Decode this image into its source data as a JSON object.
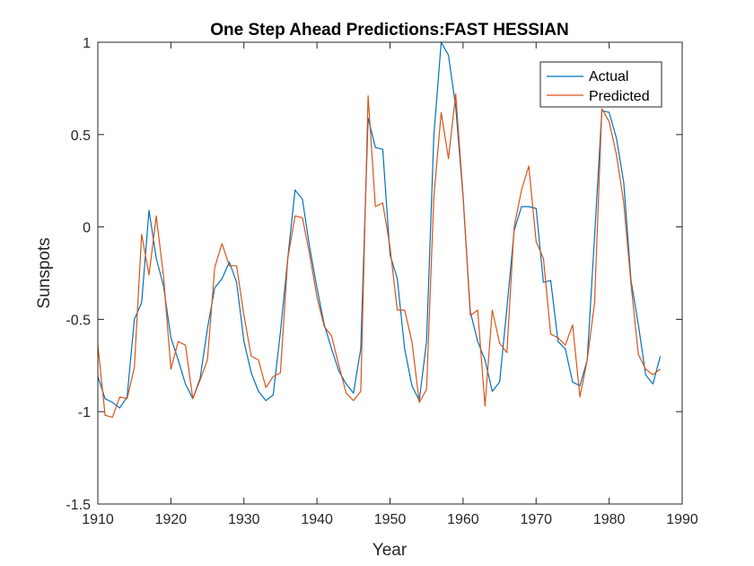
{
  "chart_data": {
    "type": "line",
    "title": "One Step Ahead Predictions:FAST HESSIAN",
    "xlabel": "Year",
    "ylabel": "Sunspots",
    "xlim": [
      1910,
      1990
    ],
    "ylim": [
      -1.5,
      1
    ],
    "xticks": [
      1910,
      1920,
      1930,
      1940,
      1950,
      1960,
      1970,
      1980,
      1990
    ],
    "yticks": [
      -1.5,
      -1,
      -0.5,
      0,
      0.5,
      1
    ],
    "ytick_labels": [
      "-1.5",
      "-1",
      "-0.5",
      "0",
      "0.5",
      "1"
    ],
    "grid": false,
    "legend_position": "top-right",
    "x": [
      1910,
      1911,
      1912,
      1913,
      1914,
      1915,
      1916,
      1917,
      1918,
      1919,
      1920,
      1921,
      1922,
      1923,
      1924,
      1925,
      1926,
      1927,
      1928,
      1929,
      1930,
      1931,
      1932,
      1933,
      1934,
      1935,
      1936,
      1937,
      1938,
      1939,
      1940,
      1941,
      1942,
      1943,
      1944,
      1945,
      1946,
      1947,
      1948,
      1949,
      1950,
      1951,
      1952,
      1953,
      1954,
      1955,
      1956,
      1957,
      1958,
      1959,
      1960,
      1961,
      1962,
      1963,
      1964,
      1965,
      1966,
      1967,
      1968,
      1969,
      1970,
      1971,
      1972,
      1973,
      1974,
      1975,
      1976,
      1977,
      1978,
      1979,
      1980,
      1981,
      1982,
      1983,
      1984,
      1985,
      1986,
      1987
    ],
    "series": [
      {
        "name": "Actual",
        "color": "#0072BD",
        "values": [
          -0.81,
          -0.93,
          -0.95,
          -0.98,
          -0.92,
          -0.5,
          -0.41,
          0.09,
          -0.17,
          -0.32,
          -0.6,
          -0.72,
          -0.85,
          -0.93,
          -0.82,
          -0.55,
          -0.33,
          -0.28,
          -0.19,
          -0.3,
          -0.62,
          -0.79,
          -0.89,
          -0.94,
          -0.91,
          -0.57,
          -0.17,
          0.2,
          0.15,
          -0.11,
          -0.33,
          -0.53,
          -0.66,
          -0.78,
          -0.85,
          -0.9,
          -0.66,
          0.59,
          0.43,
          0.42,
          -0.15,
          -0.28,
          -0.66,
          -0.86,
          -0.94,
          -0.62,
          0.49,
          1.0,
          0.93,
          0.65,
          0.16,
          -0.46,
          -0.62,
          -0.72,
          -0.89,
          -0.84,
          -0.44,
          -0.02,
          0.11,
          0.11,
          0.1,
          -0.3,
          -0.29,
          -0.62,
          -0.66,
          -0.84,
          -0.86,
          -0.72,
          -0.05,
          0.63,
          0.62,
          0.48,
          0.24,
          -0.29,
          -0.53,
          -0.8,
          -0.85,
          -0.7
        ]
      },
      {
        "name": "Predicted",
        "color": "#D95319",
        "values": [
          -0.64,
          -1.02,
          -1.03,
          -0.92,
          -0.93,
          -0.76,
          -0.04,
          -0.26,
          0.06,
          -0.27,
          -0.77,
          -0.62,
          -0.64,
          -0.93,
          -0.83,
          -0.72,
          -0.22,
          -0.09,
          -0.21,
          -0.21,
          -0.48,
          -0.7,
          -0.72,
          -0.87,
          -0.81,
          -0.79,
          -0.17,
          0.06,
          0.05,
          -0.15,
          -0.38,
          -0.54,
          -0.59,
          -0.75,
          -0.9,
          -0.94,
          -0.89,
          0.71,
          0.11,
          0.13,
          -0.11,
          -0.45,
          -0.45,
          -0.62,
          -0.95,
          -0.88,
          0.16,
          0.62,
          0.37,
          0.72,
          0.17,
          -0.48,
          -0.45,
          -0.97,
          -0.45,
          -0.63,
          -0.68,
          0.0,
          0.2,
          0.33,
          -0.08,
          -0.17,
          -0.58,
          -0.6,
          -0.64,
          -0.53,
          -0.92,
          -0.72,
          -0.41,
          0.64,
          0.57,
          0.39,
          0.13,
          -0.31,
          -0.69,
          -0.77,
          -0.8,
          -0.77
        ]
      }
    ]
  }
}
